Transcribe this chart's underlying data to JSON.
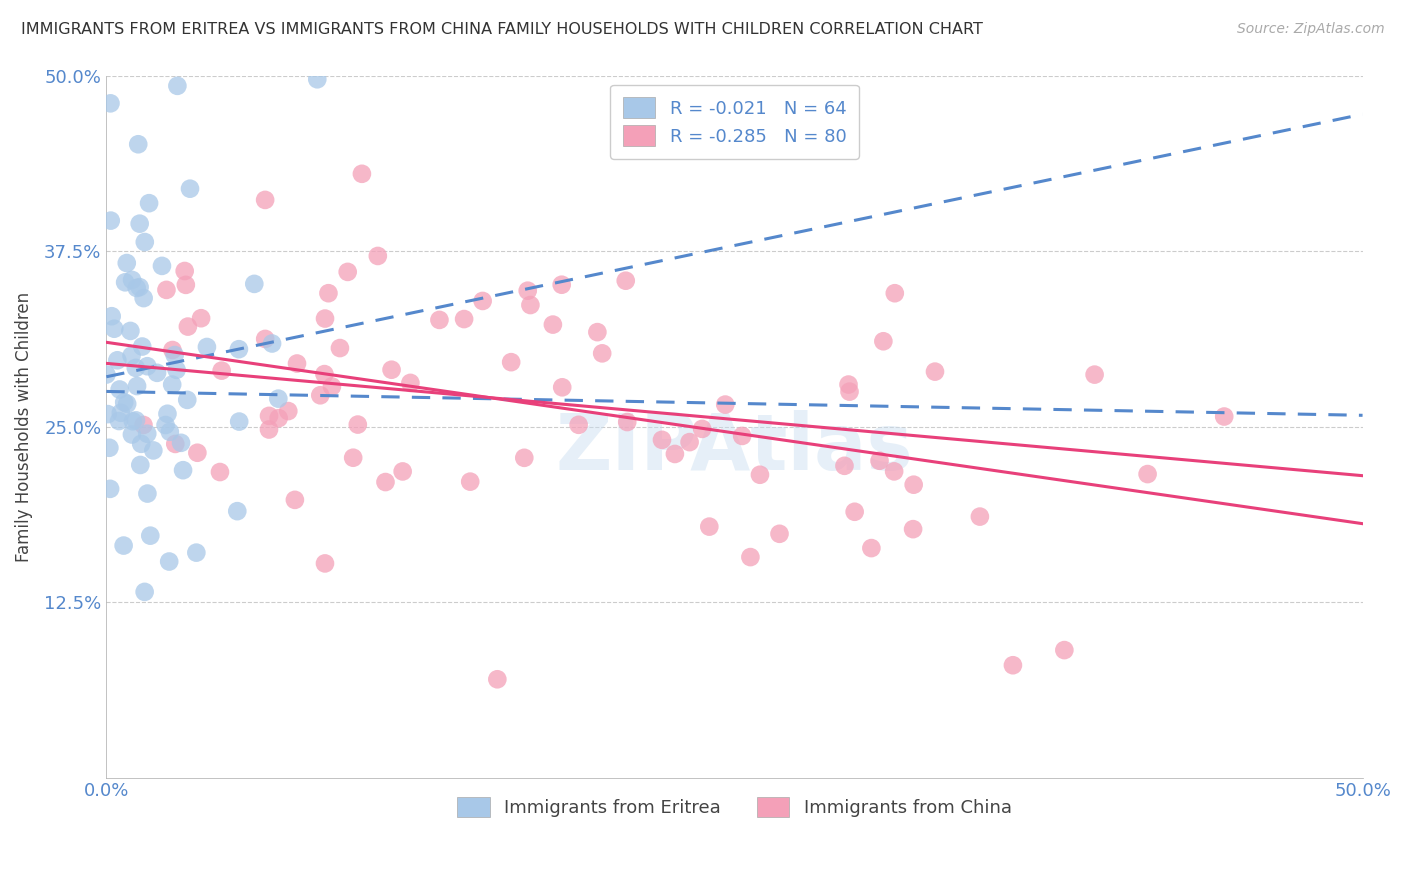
{
  "title": "IMMIGRANTS FROM ERITREA VS IMMIGRANTS FROM CHINA FAMILY HOUSEHOLDS WITH CHILDREN CORRELATION CHART",
  "source": "Source: ZipAtlas.com",
  "ylabel": "Family Households with Children",
  "legend_label1": "Immigrants from Eritrea",
  "legend_label2": "Immigrants from China",
  "R1": -0.021,
  "N1": 64,
  "R2": -0.285,
  "N2": 80,
  "scatter_color1": "#a8c8e8",
  "scatter_color2": "#f4a0b8",
  "line_color1": "#5588cc",
  "line_color2": "#e8407a",
  "xmin": 0.0,
  "xmax": 0.5,
  "ymin": 0.0,
  "ymax": 0.5,
  "yticks": [
    0.125,
    0.25,
    0.375,
    0.5
  ],
  "ytick_labels": [
    "12.5%",
    "25.0%",
    "37.5%",
    "50.0%"
  ],
  "xtick_labels": [
    "0.0%",
    "50.0%"
  ],
  "watermark": "ZIPAtlas",
  "background_color": "#ffffff",
  "grid_color": "#cccccc",
  "tick_color": "#5588cc",
  "title_fontsize": 11.5,
  "source_fontsize": 10,
  "tick_fontsize": 13,
  "ylabel_fontsize": 12
}
